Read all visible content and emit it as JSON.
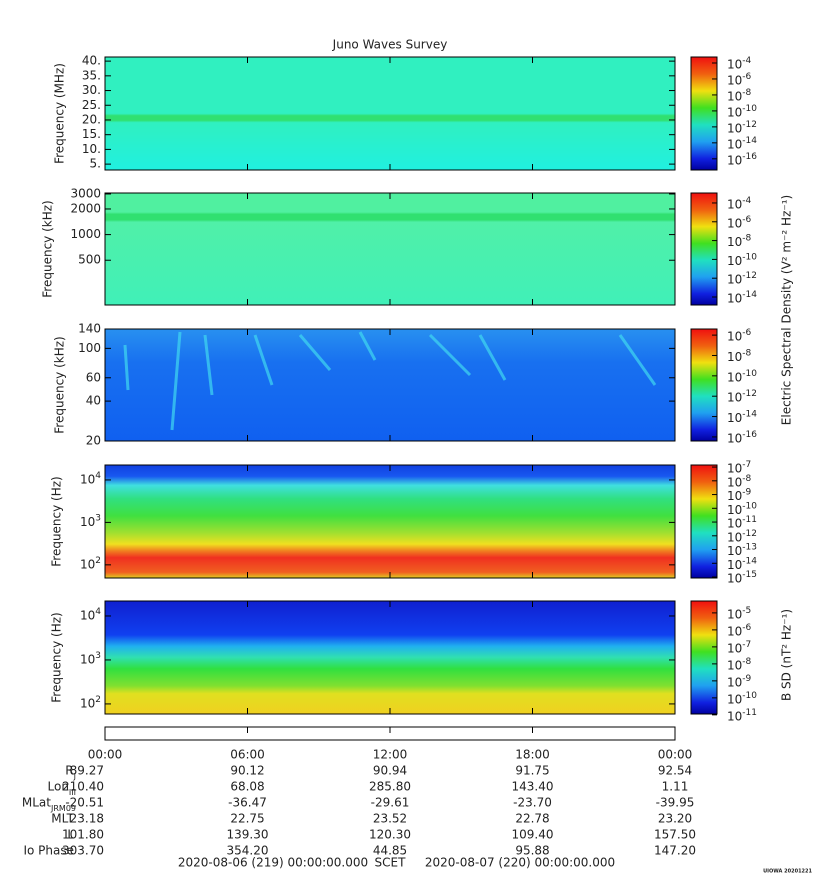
{
  "title": "Juno Waves Survey",
  "panels": [
    {
      "ylabel": "Frequency (MHz)",
      "scale": "linear",
      "ylim": [
        3,
        41.4
      ],
      "yticks": [
        {
          "value": 5,
          "label": "5."
        },
        {
          "value": 10,
          "label": "10."
        },
        {
          "value": 15,
          "label": "15."
        },
        {
          "value": 20,
          "label": "20."
        },
        {
          "value": 25,
          "label": "25."
        },
        {
          "value": 30,
          "label": "30."
        },
        {
          "value": 35,
          "label": "35."
        },
        {
          "value": 40,
          "label": "40."
        }
      ],
      "colorbar": {
        "clim": [
          -17.4,
          -3.25
        ],
        "ticks": [
          {
            "value": -4,
            "label": "10",
            "exponent": "-4"
          },
          {
            "value": -6,
            "label": "10",
            "exponent": "-6"
          },
          {
            "value": -8,
            "label": "10",
            "exponent": "-8"
          },
          {
            "value": -10,
            "label": "10",
            "exponent": "-10"
          },
          {
            "value": -12,
            "label": "10",
            "exponent": "-12"
          },
          {
            "value": -14,
            "label": "10",
            "exponent": "-14"
          },
          {
            "value": -16,
            "label": "10",
            "exponent": "-16"
          }
        ]
      }
    },
    {
      "ylabel": "Frequency (kHz)",
      "scale": "log",
      "ylim": [
        149,
        3080
      ],
      "yticks": [
        500,
        1000,
        2000,
        3000
      ],
      "colorbar": {
        "clim": [
          -14.85,
          -2.94
        ],
        "ticks": [
          {
            "value": -4,
            "label": "10",
            "exponent": "-4"
          },
          {
            "value": -6,
            "label": "10",
            "exponent": "-6"
          },
          {
            "value": -8,
            "label": "10",
            "exponent": "-8"
          },
          {
            "value": -10,
            "label": "10",
            "exponent": "-10"
          },
          {
            "value": -12,
            "label": "10",
            "exponent": "-12"
          },
          {
            "value": -14,
            "label": "10",
            "exponent": "-14"
          }
        ]
      }
    },
    {
      "ylabel": "Frequency (kHz)",
      "scale": "log",
      "ylim": [
        20,
        140
      ],
      "yticks": [
        20,
        40,
        60,
        100,
        140
      ],
      "colorbar": {
        "clim": [
          -16.4,
          -5.4
        ],
        "ticks": [
          {
            "value": -6,
            "label": "10",
            "exponent": "-6"
          },
          {
            "value": -8,
            "label": "10",
            "exponent": "-8"
          },
          {
            "value": -10,
            "label": "10",
            "exponent": "-10"
          },
          {
            "value": -12,
            "label": "10",
            "exponent": "-12"
          },
          {
            "value": -14,
            "label": "10",
            "exponent": "-14"
          },
          {
            "value": -16,
            "label": "10",
            "exponent": "-16"
          }
        ]
      }
    },
    {
      "ylabel": "Frequency (Hz)",
      "scale": "log",
      "ylim": [
        49,
        22500
      ],
      "yticks": [
        {
          "value": 100,
          "label": "10",
          "exponent": "2"
        },
        {
          "value": 1000,
          "label": "10",
          "exponent": "3"
        },
        {
          "value": 10000,
          "label": "10",
          "exponent": "4"
        }
      ],
      "colorbar": {
        "clim": [
          -15.07,
          -6.85
        ],
        "ticks": [
          {
            "value": -7,
            "label": "10",
            "exponent": "-7"
          },
          {
            "value": -8,
            "label": "10",
            "exponent": "-8"
          },
          {
            "value": -9,
            "label": "10",
            "exponent": "-9"
          },
          {
            "value": -10,
            "label": "10",
            "exponent": "-10"
          },
          {
            "value": -11,
            "label": "10",
            "exponent": "-11"
          },
          {
            "value": -12,
            "label": "10",
            "exponent": "-12"
          },
          {
            "value": -13,
            "label": "10",
            "exponent": "-13"
          },
          {
            "value": -14,
            "label": "10",
            "exponent": "-14"
          },
          {
            "value": -15,
            "label": "10",
            "exponent": "-15"
          }
        ]
      }
    },
    {
      "ylabel": "Frequency (Hz)",
      "scale": "log",
      "ylim": [
        59,
        21900
      ],
      "yticks": [
        {
          "value": 100,
          "label": "10",
          "exponent": "2"
        },
        {
          "value": 1000,
          "label": "10",
          "exponent": "3"
        },
        {
          "value": 10000,
          "label": "10",
          "exponent": "4"
        }
      ],
      "colorbar": {
        "clim": [
          -10.95,
          -4.3
        ],
        "ticks": [
          {
            "value": -5,
            "label": "10",
            "exponent": "-5"
          },
          {
            "value": -6,
            "label": "10",
            "exponent": "-6"
          },
          {
            "value": -7,
            "label": "10",
            "exponent": "-7"
          },
          {
            "value": -8,
            "label": "10",
            "exponent": "-8"
          },
          {
            "value": -9,
            "label": "10",
            "exponent": "-9"
          },
          {
            "value": -10,
            "label": "10",
            "exponent": "-10"
          },
          {
            "value": -11,
            "label": "10",
            "exponent": "-11"
          }
        ]
      }
    }
  ],
  "colorbar_titles": [
    "Electric Spectral Density (V² m⁻² Hz⁻¹)",
    "B SD (nT² Hz⁻¹)"
  ],
  "time_axis": {
    "xlim": [
      0,
      24
    ],
    "ticks": [
      {
        "value": 0,
        "label": "00:00"
      },
      {
        "value": 6,
        "label": "06:00"
      },
      {
        "value": 12,
        "label": "12:00"
      },
      {
        "value": 18,
        "label": "18:00"
      },
      {
        "value": 24,
        "label": "00:00"
      }
    ]
  },
  "ephemeris": [
    {
      "label": "R",
      "sub": "J",
      "values": [
        "89.27",
        "90.12",
        "90.94",
        "91.75",
        "92.54"
      ]
    },
    {
      "label": "Lon",
      "sub": "III",
      "values": [
        "210.40",
        "68.08",
        "285.80",
        "143.40",
        "1.11"
      ]
    },
    {
      "label": "MLat",
      "sub": "JRM09",
      "values": [
        "-20.51",
        "-36.47",
        "-29.61",
        "-23.70",
        "-39.95"
      ]
    },
    {
      "label": "MLT",
      "values": [
        "23.18",
        "22.75",
        "23.52",
        "22.78",
        "23.20"
      ]
    },
    {
      "label": "L",
      "values": [
        "101.80",
        "139.30",
        "120.30",
        "109.40",
        "157.50"
      ]
    },
    {
      "label": "Io Phase",
      "values": [
        "303.70",
        "354.20",
        "44.85",
        "95.88",
        "147.20"
      ]
    }
  ],
  "footer": {
    "start": "2020-08-06 (219) 00:00:00.000",
    "scet": "SCET",
    "end": "2020-08-07 (220) 00:00:00.000",
    "stamp": "UIOWA 20201221"
  }
}
